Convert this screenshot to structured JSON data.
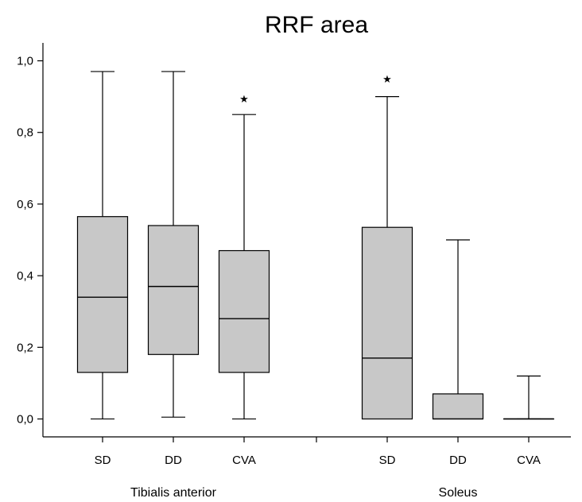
{
  "chart_data": {
    "type": "box",
    "title": "RRF area",
    "xlabel": "",
    "ylabel": "",
    "ylim": [
      -0.05,
      1.05
    ],
    "yticks": [
      {
        "value": 0.0,
        "label": "0,0"
      },
      {
        "value": 0.2,
        "label": "0,2"
      },
      {
        "value": 0.4,
        "label": "0,4"
      },
      {
        "value": 0.6,
        "label": "0,6"
      },
      {
        "value": 0.8,
        "label": "0,8"
      },
      {
        "value": 1.0,
        "label": "1,0"
      }
    ],
    "box_fill": "#c8c8c8",
    "groups": [
      {
        "label": "Tibialis anterior",
        "boxes": [
          {
            "category": "SD",
            "min": 0.0,
            "q1": 0.13,
            "median": 0.34,
            "q3": 0.565,
            "max": 0.97,
            "outliers": []
          },
          {
            "category": "DD",
            "min": 0.005,
            "q1": 0.18,
            "median": 0.37,
            "q3": 0.54,
            "max": 0.97,
            "outliers": []
          },
          {
            "category": "CVA",
            "min": 0.0,
            "q1": 0.13,
            "median": 0.28,
            "q3": 0.47,
            "max": 0.85,
            "outliers": [
              0.895
            ]
          }
        ]
      },
      {
        "label": "Soleus",
        "boxes": [
          {
            "category": "SD",
            "min": 0.0,
            "q1": 0.0,
            "median": 0.17,
            "q3": 0.535,
            "max": 0.9,
            "outliers": [
              0.95
            ]
          },
          {
            "category": "DD",
            "min": 0.0,
            "q1": 0.0,
            "median": 0.0,
            "q3": 0.07,
            "max": 0.5,
            "outliers": []
          },
          {
            "category": "CVA",
            "min": 0.0,
            "q1": 0.0,
            "median": 0.0,
            "q3": 0.0,
            "max": 0.12,
            "outliers": []
          }
        ]
      }
    ]
  }
}
